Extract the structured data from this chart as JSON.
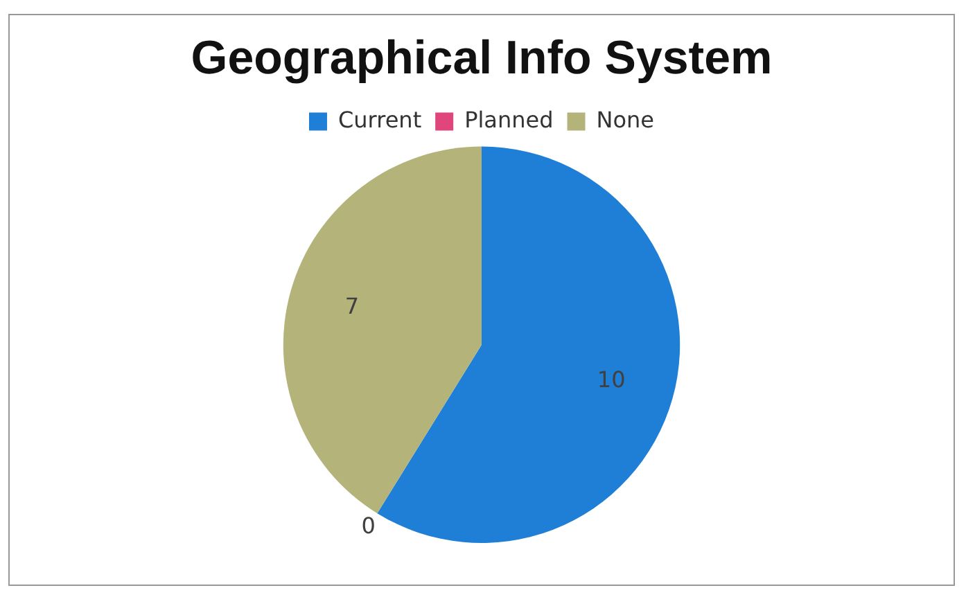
{
  "chart_data": {
    "type": "pie",
    "title": "Geographical Info System",
    "categories": [
      "Current",
      "Planned",
      "None"
    ],
    "values": [
      10,
      0,
      7
    ],
    "colors": [
      "#1f7fd6",
      "#e0457b",
      "#b3b37a"
    ],
    "value_labels": [
      "10",
      "0",
      "7"
    ],
    "legend": "top"
  }
}
